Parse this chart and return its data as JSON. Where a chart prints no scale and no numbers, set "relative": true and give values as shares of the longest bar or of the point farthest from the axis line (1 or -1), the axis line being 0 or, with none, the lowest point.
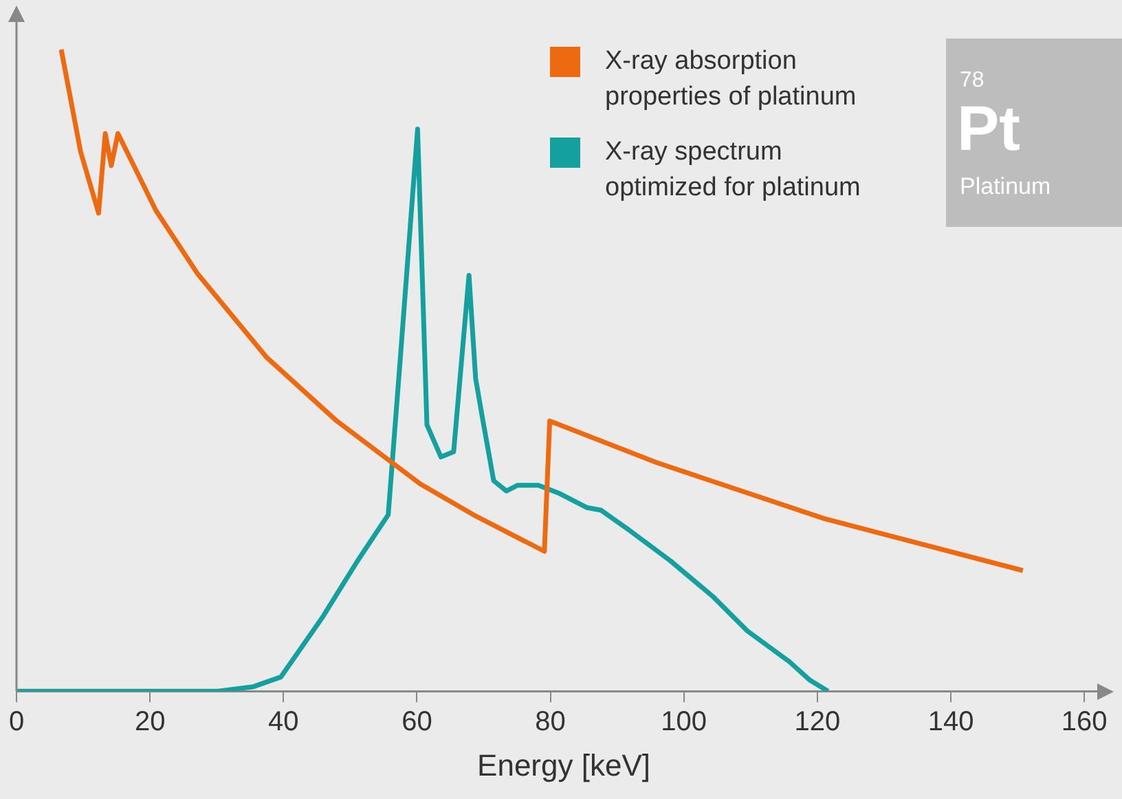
{
  "chart_data": {
    "type": "line",
    "relative": true,
    "xlabel": "Energy [keV]",
    "xlim": [
      0,
      164
    ],
    "xticks": [
      0,
      20,
      40,
      60,
      80,
      100,
      120,
      140,
      160
    ],
    "legend": "top right",
    "grid": false,
    "marker": "none",
    "line_style": "solid",
    "annotations": [
      "78",
      "Pt",
      "Platinum"
    ],
    "series": [
      {
        "name": "X-ray absorption properties of platinum",
        "color": "#ee6a10",
        "x": [
          6.7,
          9.6,
          12.3,
          13.3,
          14.2,
          15.2,
          20.9,
          27.1,
          37.5,
          48.0,
          60.5,
          68.8,
          79.1,
          79.9,
          96.0,
          121.0,
          150.8
        ],
        "values": [
          1.0,
          0.841,
          0.745,
          0.869,
          0.819,
          0.869,
          0.749,
          0.651,
          0.52,
          0.421,
          0.323,
          0.273,
          0.218,
          0.421,
          0.356,
          0.269,
          0.188
        ]
      },
      {
        "name": "X-ray spectrum optimized for platinum",
        "color": "#14a09e",
        "x": [
          0,
          30.2,
          35.5,
          39.6,
          45.9,
          51.1,
          55.7,
          57.6,
          60.1,
          61.5,
          63.6,
          65.5,
          67.8,
          68.8,
          69.9,
          71.5,
          73.4,
          75.1,
          78.2,
          81.4,
          85.5,
          87.6,
          91.8,
          98.0,
          104.3,
          109.5,
          115.8,
          118.9,
          121.6
        ],
        "values": [
          0,
          0,
          0.007,
          0.022,
          0.116,
          0.203,
          0.275,
          0.531,
          0.876,
          0.415,
          0.365,
          0.373,
          0.648,
          0.487,
          0.421,
          0.328,
          0.312,
          0.321,
          0.321,
          0.308,
          0.286,
          0.282,
          0.251,
          0.203,
          0.148,
          0.094,
          0.046,
          0.017,
          0
        ]
      }
    ]
  }
}
